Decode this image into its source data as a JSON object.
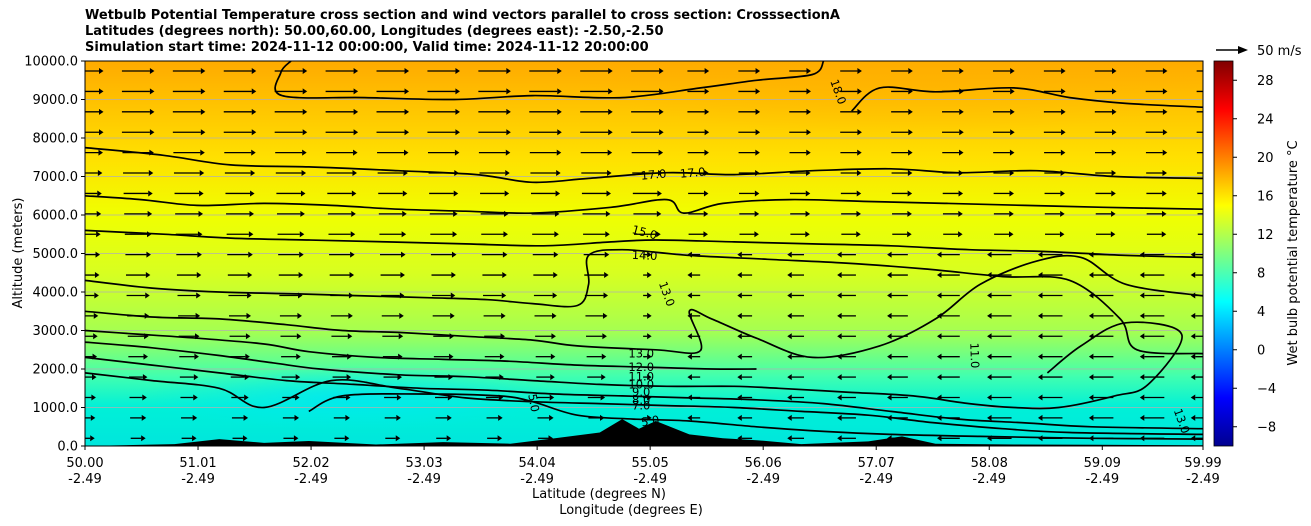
{
  "title_lines": [
    "Wetbulb Potential Temperature cross section and wind vectors parallel to cross section: CrosssectionA",
    "Latitudes (degrees north): 50.00,60.00, Longitudes (degrees east): -2.50,-2.50",
    "Simulation start time: 2024-11-12 00:00:00, Valid time: 2024-11-12 20:00:00"
  ],
  "wind_key_label": "50 m/s",
  "chart_data": {
    "type": "heatmap",
    "ylabel": "Altitude (meters)",
    "xlabel_lat": "Latitude (degrees N)",
    "xlabel_lon": "Longitude (degrees E)",
    "ylim": [
      0,
      10000
    ],
    "xlim": [
      50.0,
      59.99
    ],
    "y_ticks": [
      0,
      1000,
      2000,
      3000,
      4000,
      5000,
      6000,
      7000,
      8000,
      9000,
      10000
    ],
    "y_tick_labels": [
      "0.0",
      "1000.0",
      "2000.0",
      "3000.0",
      "4000.0",
      "5000.0",
      "6000.0",
      "7000.0",
      "8000.0",
      "9000.0",
      "10000.0"
    ],
    "x_ticks": [
      50.0,
      51.01,
      52.02,
      53.03,
      54.04,
      55.05,
      56.06,
      57.07,
      58.08,
      59.09,
      59.99
    ],
    "x_tick_labels": [
      {
        "lat": "50.00",
        "lon": "-2.49"
      },
      {
        "lat": "51.01",
        "lon": "-2.49"
      },
      {
        "lat": "52.02",
        "lon": "-2.49"
      },
      {
        "lat": "53.03",
        "lon": "-2.49"
      },
      {
        "lat": "54.04",
        "lon": "-2.49"
      },
      {
        "lat": "55.05",
        "lon": "-2.49"
      },
      {
        "lat": "56.06",
        "lon": "-2.49"
      },
      {
        "lat": "57.07",
        "lon": "-2.49"
      },
      {
        "lat": "58.08",
        "lon": "-2.49"
      },
      {
        "lat": "59.09",
        "lon": "-2.49"
      },
      {
        "lat": "59.99",
        "lon": "-2.49"
      }
    ],
    "grid": "horizontal",
    "colorbar": {
      "label": "Wet bulb potential temperature °C",
      "range": [
        -10,
        30
      ],
      "ticks": [
        -8,
        -4,
        0,
        4,
        8,
        12,
        16,
        20,
        24,
        28
      ],
      "colormap": "jet"
    },
    "field_bands": [
      {
        "top_m": 500,
        "value_c": 7
      },
      {
        "top_m": 1800,
        "value_c": 8
      },
      {
        "top_m": 3500,
        "value_c": 12
      },
      {
        "top_m": 6000,
        "value_c": 14
      },
      {
        "top_m": 8000,
        "value_c": 16.5
      },
      {
        "top_m": 10000,
        "value_c": 19
      }
    ],
    "contour_labels": [
      {
        "text": "18.0",
        "lat": 56.73,
        "alt": 9200,
        "rot": 70
      },
      {
        "text": "17.0",
        "lat": 55.08,
        "alt": 7050,
        "rot": -5
      },
      {
        "text": "17.0",
        "lat": 55.43,
        "alt": 7100,
        "rot": -5
      },
      {
        "text": "15.0",
        "lat": 55.0,
        "alt": 5550,
        "rot": 15
      },
      {
        "text": "14.0",
        "lat": 55.0,
        "alt": 4950,
        "rot": 3
      },
      {
        "text": "13.0",
        "lat": 55.2,
        "alt": 3950,
        "rot": 70
      },
      {
        "text": "11.0",
        "lat": 57.95,
        "alt": 2350,
        "rot": 88
      },
      {
        "text": "13.0",
        "lat": 54.97,
        "alt": 2400,
        "rot": 0
      },
      {
        "text": "12.0",
        "lat": 54.97,
        "alt": 2050,
        "rot": 0
      },
      {
        "text": "11.0",
        "lat": 54.97,
        "alt": 1800,
        "rot": 0
      },
      {
        "text": "10.0",
        "lat": 54.97,
        "alt": 1600,
        "rot": 0
      },
      {
        "text": "9.0",
        "lat": 54.97,
        "alt": 1400,
        "rot": 0
      },
      {
        "text": "8.0",
        "lat": 54.97,
        "alt": 1200,
        "rot": 0
      },
      {
        "text": "7.0",
        "lat": 54.97,
        "alt": 1050,
        "rot": 0
      },
      {
        "text": "5.0",
        "lat": 55.05,
        "alt": 650,
        "rot": -10
      },
      {
        "text": "5.0",
        "lat": 54.01,
        "alt": 1120,
        "rot": 80
      },
      {
        "text": "13.0",
        "lat": 59.8,
        "alt": 650,
        "rot": 70
      }
    ],
    "contour_lines": [
      {
        "value": 18,
        "points": [
          [
            51.84,
            10000
          ],
          [
            51.75,
            9700
          ],
          [
            51.76,
            9100
          ],
          [
            52.5,
            9050
          ],
          [
            53.3,
            9000
          ],
          [
            54.0,
            9100
          ],
          [
            54.8,
            9050
          ],
          [
            55.5,
            9300
          ],
          [
            56.0,
            9500
          ],
          [
            56.5,
            9650
          ],
          [
            56.6,
            10000
          ]
        ]
      },
      {
        "value": 18,
        "points": [
          [
            56.85,
            8700
          ],
          [
            57.1,
            9300
          ],
          [
            57.6,
            9200
          ],
          [
            58.3,
            9300
          ],
          [
            58.8,
            9050
          ],
          [
            59.3,
            8900
          ],
          [
            59.99,
            8800
          ]
        ]
      },
      {
        "value": 17,
        "points": [
          [
            50.0,
            7750
          ],
          [
            50.7,
            7550
          ],
          [
            51.3,
            7300
          ],
          [
            52.0,
            7250
          ],
          [
            52.8,
            7150
          ],
          [
            53.5,
            7050
          ],
          [
            54.0,
            6850
          ],
          [
            54.5,
            6950
          ],
          [
            55.2,
            7100
          ],
          [
            55.8,
            7050
          ],
          [
            56.5,
            7150
          ],
          [
            57.2,
            7200
          ],
          [
            57.8,
            7100
          ],
          [
            58.5,
            7150
          ],
          [
            59.2,
            7000
          ],
          [
            59.99,
            6950
          ]
        ]
      },
      {
        "value": 16,
        "points": [
          [
            50.0,
            6500
          ],
          [
            50.5,
            6400
          ],
          [
            51.0,
            6250
          ],
          [
            51.6,
            6300
          ],
          [
            52.2,
            6250
          ],
          [
            52.8,
            6150
          ],
          [
            53.4,
            6100
          ],
          [
            54.0,
            6050
          ],
          [
            54.7,
            6200
          ],
          [
            55.2,
            6400
          ],
          [
            55.35,
            6050
          ],
          [
            55.7,
            6300
          ],
          [
            56.3,
            6400
          ],
          [
            57.0,
            6350
          ],
          [
            57.7,
            6300
          ],
          [
            58.4,
            6250
          ],
          [
            59.1,
            6200
          ],
          [
            59.99,
            6150
          ]
        ]
      },
      {
        "value": 15,
        "points": [
          [
            50.0,
            5600
          ],
          [
            50.7,
            5500
          ],
          [
            51.3,
            5400
          ],
          [
            52.0,
            5350
          ],
          [
            52.7,
            5300
          ],
          [
            53.4,
            5250
          ],
          [
            54.1,
            5200
          ],
          [
            54.7,
            5300
          ],
          [
            55.1,
            5350
          ],
          [
            55.8,
            5300
          ],
          [
            56.5,
            5250
          ],
          [
            57.2,
            5200
          ],
          [
            57.9,
            5100
          ],
          [
            58.6,
            5050
          ],
          [
            59.3,
            4950
          ],
          [
            59.99,
            4900
          ]
        ]
      },
      {
        "value": 14,
        "points": [
          [
            50.0,
            4300
          ],
          [
            50.6,
            4100
          ],
          [
            51.2,
            4000
          ],
          [
            51.9,
            3950
          ],
          [
            52.5,
            3900
          ],
          [
            53.1,
            3850
          ],
          [
            53.6,
            3800
          ],
          [
            54.0,
            3700
          ],
          [
            54.4,
            3650
          ],
          [
            54.5,
            4200
          ],
          [
            54.5,
            4950
          ],
          [
            54.8,
            5100
          ],
          [
            55.4,
            4950
          ],
          [
            56.1,
            4850
          ],
          [
            56.8,
            4750
          ],
          [
            57.5,
            4600
          ],
          [
            58.2,
            4400
          ],
          [
            58.8,
            4300
          ],
          [
            59.25,
            3300
          ],
          [
            59.4,
            2500
          ],
          [
            59.99,
            2400
          ]
        ]
      },
      {
        "value": 13,
        "points": [
          [
            50.0,
            3500
          ],
          [
            50.6,
            3350
          ],
          [
            51.2,
            3300
          ],
          [
            51.8,
            3150
          ],
          [
            52.3,
            3000
          ],
          [
            52.8,
            2950
          ],
          [
            53.4,
            2850
          ],
          [
            54.0,
            2750
          ],
          [
            54.4,
            2600
          ],
          [
            55.1,
            2500
          ],
          [
            55.5,
            2480
          ],
          [
            55.4,
            3500
          ],
          [
            55.6,
            3300
          ],
          [
            56.0,
            2800
          ],
          [
            56.5,
            2300
          ],
          [
            57.1,
            2600
          ],
          [
            57.6,
            3300
          ],
          [
            58.0,
            4200
          ],
          [
            58.5,
            4800
          ],
          [
            58.9,
            4900
          ],
          [
            59.3,
            4200
          ],
          [
            59.99,
            3900
          ]
        ]
      },
      {
        "value": 12,
        "points": [
          [
            50.0,
            3000
          ],
          [
            50.5,
            2900
          ],
          [
            51.0,
            2800
          ],
          [
            51.6,
            2650
          ],
          [
            52.0,
            2450
          ],
          [
            52.6,
            2300
          ],
          [
            53.2,
            2250
          ],
          [
            53.8,
            2200
          ],
          [
            54.4,
            2100
          ],
          [
            55.0,
            2050
          ],
          [
            55.6,
            2000
          ],
          [
            56.0,
            2000
          ]
        ]
      },
      {
        "value": 11,
        "points": [
          [
            50.0,
            2700
          ],
          [
            50.6,
            2550
          ],
          [
            51.2,
            2350
          ],
          [
            51.7,
            2150
          ],
          [
            52.1,
            2000
          ],
          [
            52.8,
            1850
          ],
          [
            53.4,
            1800
          ],
          [
            54.0,
            1700
          ],
          [
            54.6,
            1600
          ],
          [
            55.2,
            1550
          ],
          [
            55.8,
            1550
          ],
          [
            56.2,
            1500
          ],
          [
            56.8,
            1400
          ],
          [
            57.4,
            1300
          ],
          [
            57.9,
            1100
          ],
          [
            58.3,
            1000
          ],
          [
            58.7,
            1000
          ],
          [
            59.2,
            1300
          ],
          [
            59.5,
            1600
          ],
          [
            59.8,
            2900
          ],
          [
            59.3,
            3200
          ],
          [
            58.9,
            2600
          ],
          [
            58.6,
            1900
          ]
        ]
      },
      {
        "value": 10,
        "points": [
          [
            50.0,
            2300
          ],
          [
            50.6,
            2100
          ],
          [
            51.2,
            1900
          ],
          [
            51.8,
            1700
          ],
          [
            52.4,
            1600
          ],
          [
            53.0,
            1500
          ],
          [
            53.6,
            1450
          ],
          [
            54.2,
            1350
          ],
          [
            54.8,
            1300
          ],
          [
            55.4,
            1250
          ],
          [
            56.0,
            1200
          ],
          [
            56.6,
            1100
          ],
          [
            57.2,
            900
          ],
          [
            57.8,
            700
          ],
          [
            58.4,
            600
          ],
          [
            59.0,
            500
          ],
          [
            59.99,
            450
          ]
        ]
      },
      {
        "value": 9,
        "points": [
          [
            50.0,
            1900
          ],
          [
            50.6,
            1700
          ],
          [
            51.2,
            1500
          ],
          [
            51.6,
            1000
          ],
          [
            52.2,
            1700
          ],
          [
            52.8,
            1500
          ],
          [
            53.4,
            1250
          ],
          [
            54.0,
            1150
          ],
          [
            54.6,
            1100
          ],
          [
            55.2,
            1050
          ],
          [
            55.8,
            1000
          ],
          [
            56.4,
            900
          ],
          [
            57.0,
            800
          ],
          [
            57.6,
            600
          ],
          [
            58.2,
            450
          ],
          [
            58.8,
            350
          ],
          [
            59.99,
            300
          ]
        ]
      },
      {
        "value": 5,
        "points": [
          [
            52.0,
            900
          ],
          [
            52.3,
            1300
          ],
          [
            53.0,
            1350
          ],
          [
            53.7,
            1300
          ],
          [
            54.0,
            1150
          ],
          [
            54.4,
            800
          ],
          [
            54.9,
            700
          ],
          [
            55.4,
            650
          ],
          [
            56.0,
            500
          ],
          [
            56.6,
            380
          ],
          [
            57.2,
            300
          ],
          [
            58.0,
            250
          ],
          [
            59.0,
            200
          ],
          [
            59.99,
            180
          ]
        ]
      }
    ],
    "wind_vectors": {
      "description": "Westerly (rightward) arrows in the western and upper section; easterly (leftward) arrows in the eastern mid/lower section; weak winds mid-section",
      "eastward_region_lat": [
        50.0,
        55.0
      ],
      "westward_region_lat": [
        55.0,
        59.99
      ]
    },
    "terrain": {
      "description": "Black orography silhouette along the bottom",
      "points": [
        [
          50.0,
          0
        ],
        [
          50.8,
          50
        ],
        [
          51.2,
          180
        ],
        [
          51.6,
          80
        ],
        [
          52.0,
          130
        ],
        [
          52.6,
          40
        ],
        [
          53.2,
          100
        ],
        [
          53.8,
          60
        ],
        [
          54.2,
          200
        ],
        [
          54.6,
          350
        ],
        [
          54.8,
          700
        ],
        [
          54.95,
          450
        ],
        [
          55.1,
          650
        ],
        [
          55.4,
          300
        ],
        [
          55.7,
          200
        ],
        [
          56.0,
          150
        ],
        [
          56.4,
          50
        ],
        [
          57.0,
          120
        ],
        [
          57.3,
          250
        ],
        [
          57.6,
          60
        ],
        [
          58.3,
          40
        ],
        [
          59.0,
          30
        ],
        [
          59.99,
          20
        ]
      ]
    }
  }
}
